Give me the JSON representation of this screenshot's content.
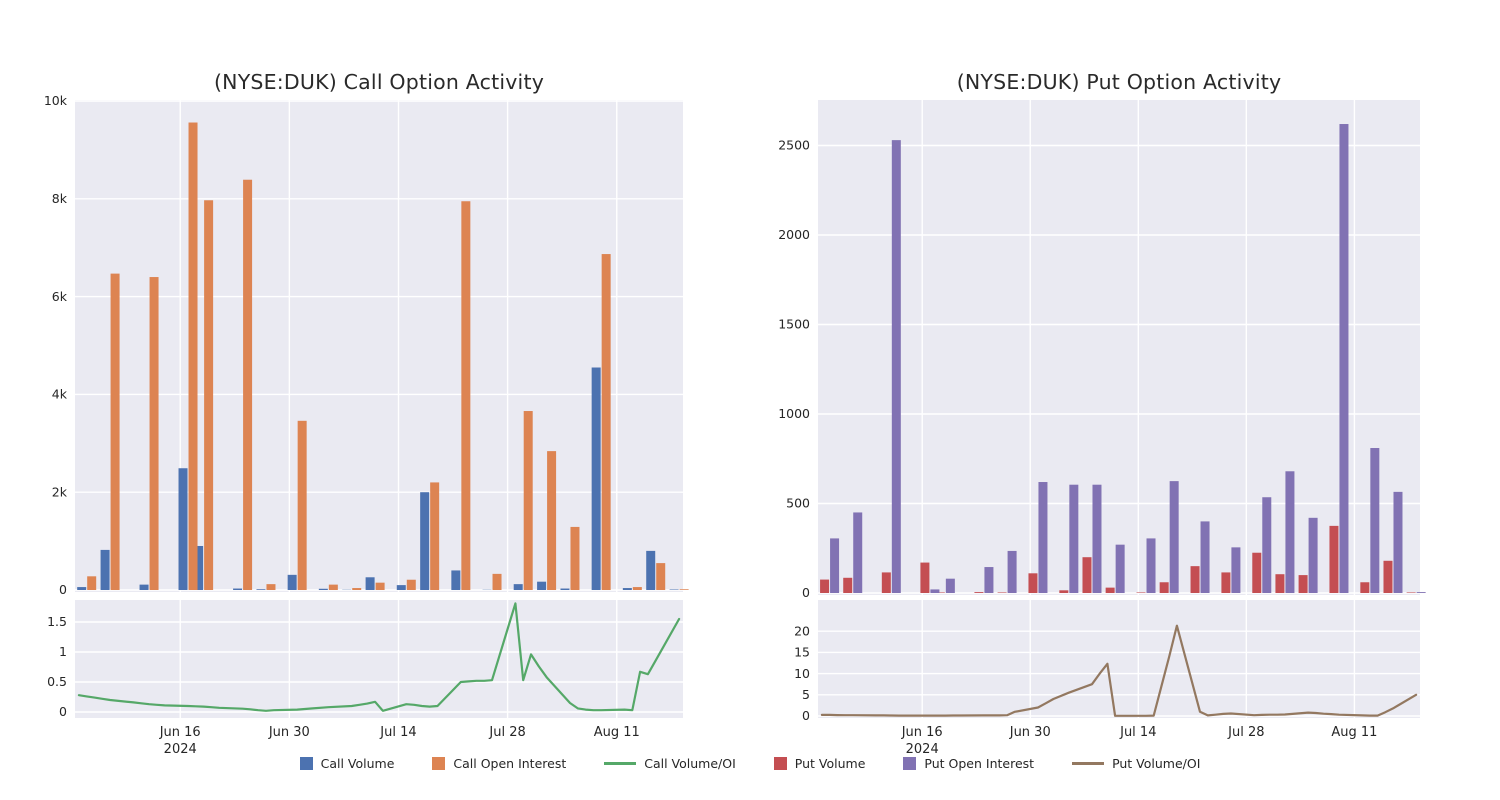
{
  "chart_data": {
    "type": "bar",
    "titles": [
      "(NYSE:DUK) Call Option Activity",
      "(NYSE:DUK) Put Option Activity"
    ],
    "year_label": "2024",
    "dates": [
      "Jun 3",
      "Jun 4",
      "Jun 5",
      "Jun 6",
      "Jun 7",
      "Jun 10",
      "Jun 11",
      "Jun 12",
      "Jun 13",
      "Jun 14",
      "Jun 17",
      "Jun 18",
      "Jun 19",
      "Jun 20",
      "Jun 21",
      "Jun 24",
      "Jun 25",
      "Jun 26",
      "Jun 27",
      "Jun 28",
      "Jul 1",
      "Jul 2",
      "Jul 3",
      "Jul 5",
      "Jul 8",
      "Jul 9",
      "Jul 10",
      "Jul 11",
      "Jul 12",
      "Jul 15",
      "Jul 16",
      "Jul 17",
      "Jul 18",
      "Jul 19",
      "Jul 22",
      "Jul 23",
      "Jul 24",
      "Jul 25",
      "Jul 26",
      "Jul 29",
      "Jul 30",
      "Jul 31",
      "Aug 1",
      "Aug 2",
      "Aug 5",
      "Aug 6",
      "Aug 7",
      "Aug 8",
      "Aug 9",
      "Aug 12",
      "Aug 13",
      "Aug 14",
      "Aug 15",
      "Aug 16",
      "Aug 19"
    ],
    "day_offsets": [
      0.5,
      1.5,
      2.5,
      3.5,
      4.5,
      7.5,
      8.5,
      9.5,
      10.5,
      11.5,
      14.5,
      15.5,
      16.5,
      17.5,
      18.5,
      21.5,
      22.5,
      23.5,
      24.5,
      25.5,
      28.5,
      29.5,
      30.5,
      32.5,
      35.5,
      36.5,
      37.5,
      38.5,
      39.5,
      42.5,
      43.5,
      44.5,
      45.5,
      46.5,
      49.5,
      50.5,
      51.5,
      52.5,
      53.5,
      56.5,
      57.5,
      58.5,
      59.5,
      60.5,
      63.5,
      64.5,
      65.5,
      66.5,
      67.5,
      70.5,
      71.5,
      72.5,
      73.5,
      74.5,
      77.5
    ],
    "range_days": 78,
    "x_ticks": [
      {
        "day": 13.5,
        "label": "Jun 16"
      },
      {
        "day": 27.5,
        "label": "Jun 30"
      },
      {
        "day": 41.5,
        "label": "Jul 14"
      },
      {
        "day": 55.5,
        "label": "Jul 28"
      },
      {
        "day": 69.5,
        "label": "Aug 11"
      }
    ],
    "axes": {
      "call_main": {
        "values": [
          0,
          2000,
          4000,
          6000,
          8000,
          10000
        ],
        "labels": [
          "0",
          "2k",
          "4k",
          "6k",
          "8k",
          "10k"
        ]
      },
      "call_ratio": {
        "values": [
          0,
          0.5,
          1,
          1.5
        ],
        "labels": [
          "0",
          "0.5",
          "1",
          "1.5"
        ]
      },
      "put_main": {
        "values": [
          0,
          500,
          1000,
          1500,
          2000,
          2500
        ],
        "labels": [
          "0",
          "500",
          "1000",
          "1500",
          "2000",
          "2500"
        ]
      },
      "put_ratio": {
        "values": [
          0,
          5,
          10,
          15,
          20
        ],
        "labels": [
          "0",
          "5",
          "10",
          "15",
          "20"
        ]
      }
    },
    "series": [
      {
        "name": "Call Volume",
        "type": "bar",
        "color": "#4C72B0",
        "values": [
          0,
          60,
          0,
          0,
          820,
          0,
          0,
          110,
          0,
          0,
          2490,
          0,
          900,
          0,
          0,
          30,
          0,
          0,
          15,
          0,
          310,
          0,
          0,
          25,
          5,
          0,
          0,
          260,
          0,
          100,
          0,
          0,
          2000,
          0,
          400,
          0,
          0,
          0,
          5,
          0,
          120,
          0,
          0,
          170,
          30,
          0,
          0,
          0,
          4550,
          0,
          40,
          0,
          0,
          800,
          10
        ]
      },
      {
        "name": "Call Open Interest",
        "type": "bar",
        "color": "#DD8452",
        "values": [
          0,
          280,
          0,
          0,
          6470,
          0,
          0,
          6400,
          0,
          0,
          9560,
          0,
          7970,
          0,
          0,
          8390,
          0,
          0,
          120,
          0,
          3460,
          0,
          0,
          110,
          40,
          0,
          0,
          150,
          0,
          210,
          0,
          0,
          2200,
          0,
          7950,
          0,
          0,
          0,
          330,
          0,
          3660,
          0,
          0,
          2840,
          1290,
          0,
          0,
          0,
          6870,
          0,
          60,
          0,
          0,
          550,
          15
        ]
      },
      {
        "name": "Call Volume/OI",
        "type": "line",
        "color": "#55A868",
        "values": [
          0.28,
          0.26,
          0.24,
          0.22,
          0.2,
          0.16,
          0.145,
          0.13,
          0.12,
          0.11,
          0.1,
          0.095,
          0.09,
          0.08,
          0.07,
          0.055,
          0.045,
          0.03,
          0.02,
          0.03,
          0.04,
          0.05,
          0.06,
          0.08,
          0.1,
          0.12,
          0.14,
          0.17,
          0.02,
          0.13,
          0.12,
          0.1,
          0.09,
          0.1,
          0.5,
          0.51,
          0.52,
          0.52,
          0.53,
          1.81,
          0.53,
          0.96,
          0.76,
          0.58,
          0.15,
          0.06,
          0.04,
          0.03,
          0.03,
          0.04,
          0.03,
          0.67,
          0.63,
          0.86,
          1.55
        ]
      },
      {
        "name": "Put Volume",
        "type": "bar",
        "color": "#C44E52",
        "values": [
          0,
          75,
          0,
          0,
          85,
          0,
          0,
          115,
          0,
          0,
          170,
          0,
          3,
          0,
          0,
          5,
          0,
          0,
          3,
          0,
          110,
          0,
          0,
          15,
          200,
          0,
          0,
          30,
          0,
          3,
          0,
          0,
          60,
          0,
          150,
          0,
          0,
          0,
          115,
          0,
          225,
          0,
          0,
          105,
          100,
          0,
          0,
          0,
          375,
          0,
          60,
          0,
          0,
          180,
          3
        ]
      },
      {
        "name": "Put Open Interest",
        "type": "bar",
        "color": "#8172B3",
        "values": [
          0,
          305,
          0,
          0,
          450,
          0,
          0,
          2530,
          0,
          0,
          20,
          0,
          80,
          0,
          0,
          145,
          0,
          0,
          235,
          0,
          620,
          0,
          0,
          605,
          605,
          0,
          0,
          270,
          0,
          305,
          0,
          0,
          625,
          0,
          400,
          0,
          0,
          0,
          255,
          0,
          535,
          0,
          0,
          680,
          420,
          0,
          0,
          0,
          2620,
          0,
          810,
          0,
          0,
          565,
          5
        ]
      },
      {
        "name": "Put Volume/OI",
        "type": "line",
        "color": "#937860",
        "values": [
          0.25,
          0.25,
          0.22,
          0.2,
          0.19,
          0.15,
          0.13,
          0.11,
          0.1,
          0.1,
          0.1,
          0.1,
          0.1,
          0.11,
          0.12,
          0.14,
          0.15,
          0.15,
          0.2,
          1.0,
          2.0,
          3.0,
          4.0,
          5.5,
          7.5,
          10.0,
          12.3,
          0.05,
          0.05,
          0.05,
          0.1,
          7.0,
          14.0,
          21.3,
          1.0,
          0.15,
          0.3,
          0.5,
          0.6,
          0.2,
          0.25,
          0.3,
          0.3,
          0.35,
          0.8,
          0.7,
          0.55,
          0.45,
          0.3,
          0.15,
          0.1,
          0.1,
          0.9,
          1.8,
          5.0
        ]
      }
    ],
    "layout_hints": {
      "grid": true,
      "legend_position": "bottom-center"
    }
  },
  "legend": {
    "items": [
      {
        "label": "Call Volume",
        "color": "#4C72B0",
        "swatch": "square"
      },
      {
        "label": "Call Open Interest",
        "color": "#DD8452",
        "swatch": "square"
      },
      {
        "label": "Call Volume/OI",
        "color": "#55A868",
        "swatch": "line"
      },
      {
        "label": "Put Volume",
        "color": "#C44E52",
        "swatch": "square"
      },
      {
        "label": "Put Open Interest",
        "color": "#8172B3",
        "swatch": "square"
      },
      {
        "label": "Put Volume/OI",
        "color": "#937860",
        "swatch": "line"
      }
    ]
  },
  "colors": {
    "background": "#FFFFFF",
    "panel": "#EAEAF2",
    "grid": "#FFFFFF",
    "text": "#262626"
  }
}
